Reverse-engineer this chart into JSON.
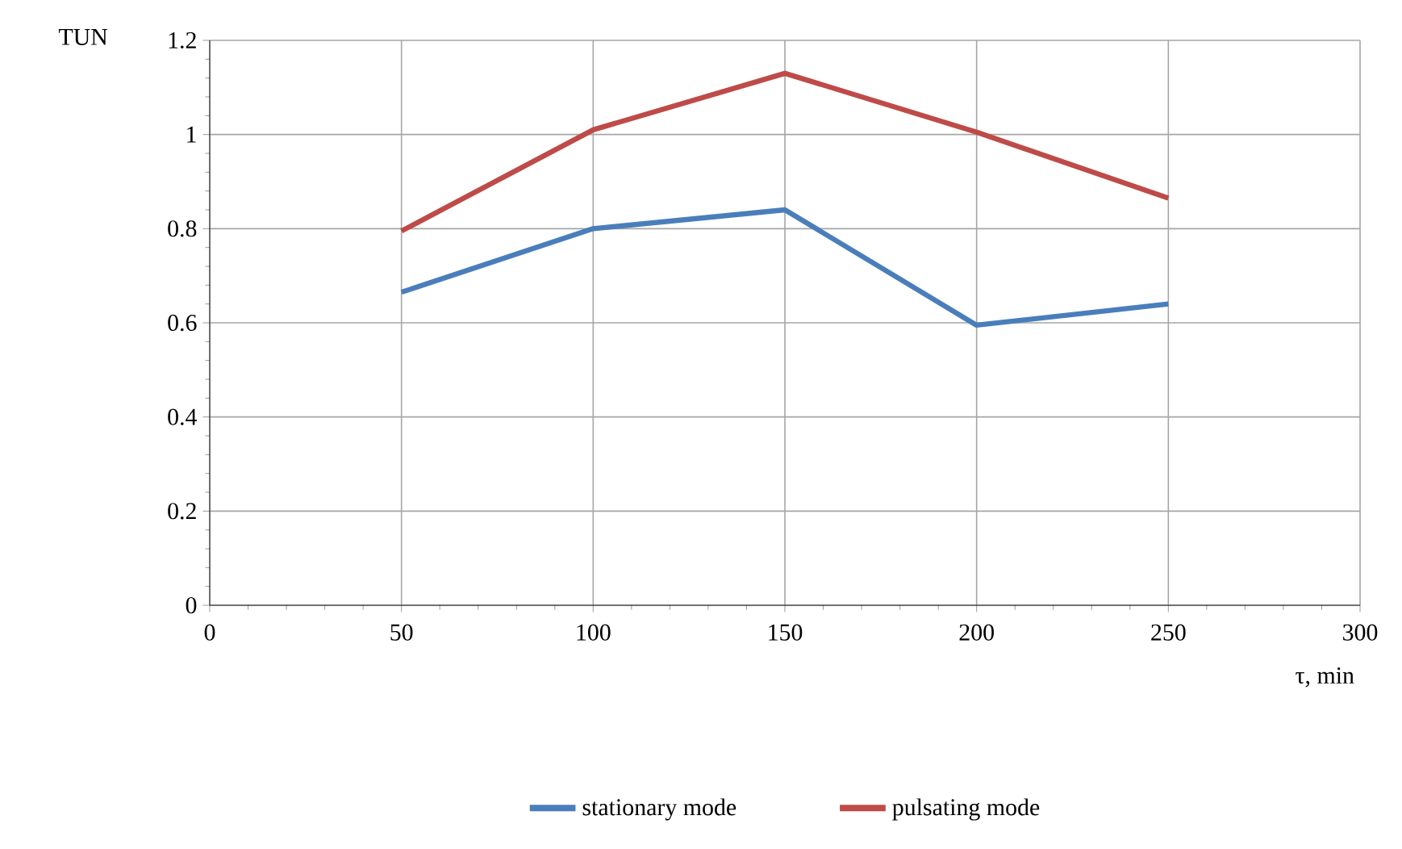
{
  "chart_data": {
    "type": "line",
    "ylabel": "TUN",
    "xlabel": "τ, min",
    "x": [
      50,
      100,
      150,
      200,
      250
    ],
    "series": [
      {
        "name": "stationary mode",
        "color": "#4a7ebb",
        "values": [
          0.665,
          0.8,
          0.84,
          0.595,
          0.64
        ]
      },
      {
        "name": "pulsating mode",
        "color": "#be4b48",
        "values": [
          0.795,
          1.01,
          1.13,
          1.005,
          0.865
        ]
      }
    ],
    "xlim": [
      0,
      300
    ],
    "xticks": [
      0,
      50,
      100,
      150,
      200,
      250,
      300
    ],
    "ylim": [
      0,
      1.2
    ],
    "yticks": [
      0,
      0.2,
      0.4,
      0.6,
      0.8,
      1,
      1.2
    ],
    "grid": true,
    "legend": "bottom",
    "marker": "none",
    "line_style": "solid"
  }
}
